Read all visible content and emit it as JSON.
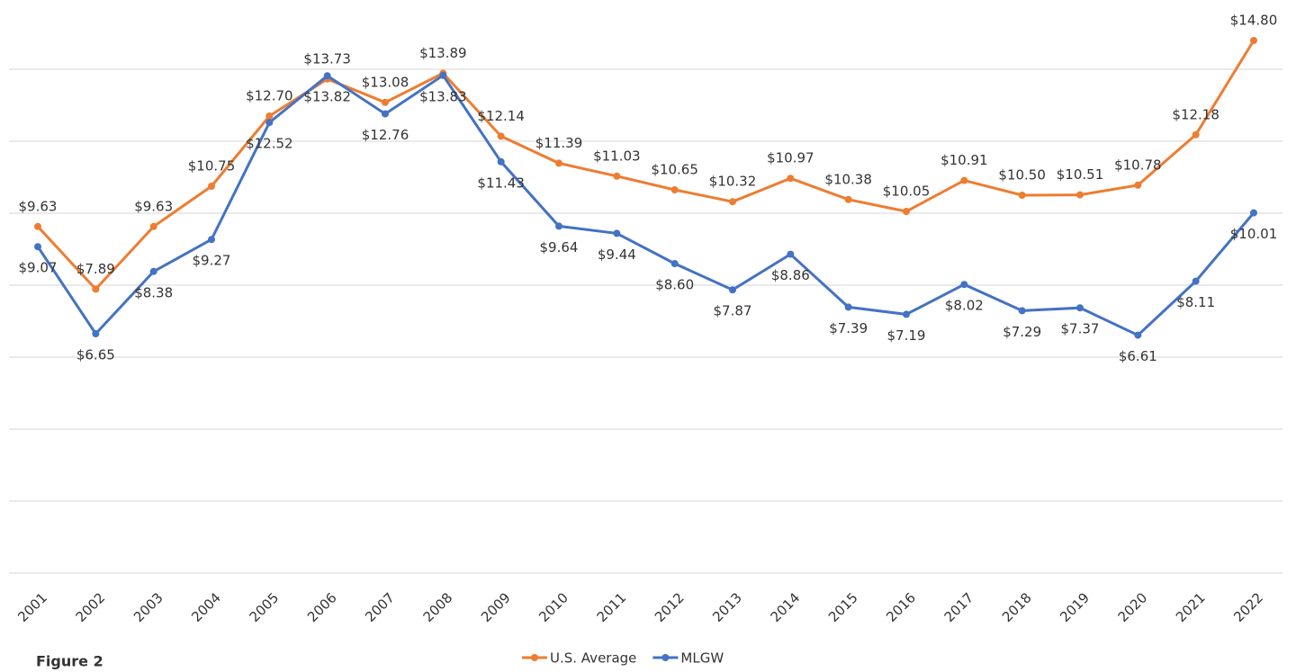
{
  "chart_data": {
    "type": "line",
    "caption": "Figure 2",
    "categories": [
      "2001",
      "2002",
      "2003",
      "2004",
      "2005",
      "2006",
      "2007",
      "2008",
      "2009",
      "2010",
      "2011",
      "2012",
      "2013",
      "2014",
      "2015",
      "2016",
      "2017",
      "2018",
      "2019",
      "2020",
      "2021",
      "2022"
    ],
    "series": [
      {
        "name": "U.S. Average",
        "color": "#ed7d31",
        "values": [
          9.63,
          7.89,
          9.63,
          10.75,
          12.7,
          13.73,
          13.08,
          13.89,
          12.14,
          11.39,
          11.03,
          10.65,
          10.32,
          10.97,
          10.38,
          10.05,
          10.91,
          10.5,
          10.51,
          10.78,
          12.18,
          14.8
        ],
        "value_labels": [
          "$9.63",
          "$7.89",
          "$9.63",
          "$10.75",
          "$12.70",
          "$13.73",
          "$13.08",
          "$13.89",
          "$12.14",
          "$11.39",
          "$11.03",
          "$10.65",
          "$10.32",
          "$10.97",
          "$10.38",
          "$10.05",
          "$10.91",
          "$10.50",
          "$10.51",
          "$10.78",
          "$12.18",
          "$14.80"
        ]
      },
      {
        "name": "MLGW",
        "color": "#4472c4",
        "values": [
          9.07,
          6.65,
          8.38,
          9.27,
          12.52,
          13.82,
          12.76,
          13.83,
          11.43,
          9.64,
          9.44,
          8.6,
          7.87,
          8.86,
          7.39,
          7.19,
          8.02,
          7.29,
          7.37,
          6.61,
          8.11,
          10.01
        ],
        "value_labels": [
          "$9.07",
          "$6.65",
          "$8.38",
          "$9.27",
          "$12.52",
          "$13.82",
          "$12.76",
          "$13.83",
          "$11.43",
          "$9.64",
          "$9.44",
          "$8.60",
          "$7.87",
          "$8.86",
          "$7.39",
          "$7.19",
          "$8.02",
          "$7.29",
          "$7.37",
          "$6.61",
          "$8.11",
          "$10.01"
        ]
      }
    ],
    "ylim": [
      0,
      16
    ],
    "yticks": [
      0,
      2,
      4,
      6,
      8,
      10,
      12,
      14
    ],
    "grid": true,
    "legend": "bottom"
  }
}
